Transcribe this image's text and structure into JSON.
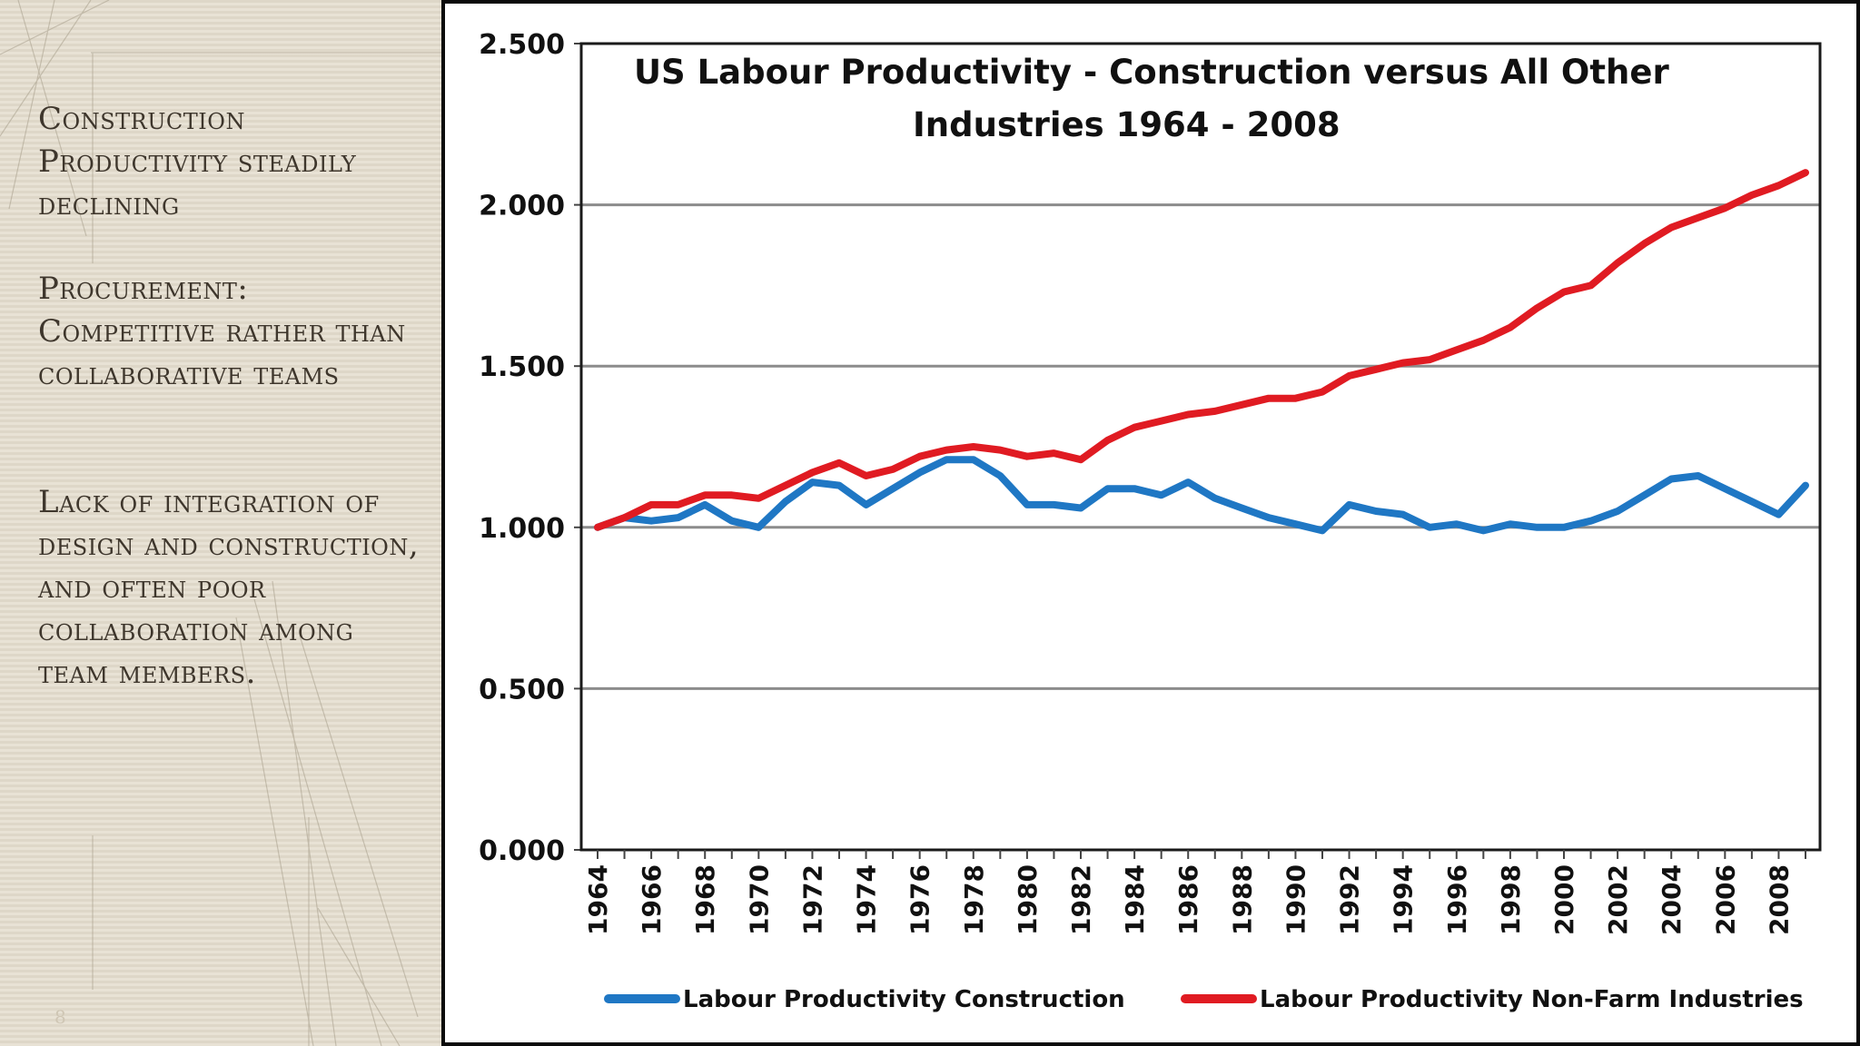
{
  "slide": {
    "bullets": [
      "Construction Productivity steadily declining",
      "Procurement: Competitive rather than collaborative teams",
      "Lack of integration of design and construction, and often poor collaboration among team members."
    ],
    "slide_number": "8"
  },
  "colors": {
    "construction": "#1f77c4",
    "non_farm": "#e01b22",
    "panel": "#e3dccd",
    "text": "#3e362c"
  },
  "chart_data": {
    "type": "line",
    "title_lines": [
      "US Labour Productivity - Construction versus All Other",
      "Industries  1964 - 2008"
    ],
    "x": [
      1964,
      1965,
      1966,
      1967,
      1968,
      1969,
      1970,
      1971,
      1972,
      1973,
      1974,
      1975,
      1976,
      1977,
      1978,
      1979,
      1980,
      1981,
      1982,
      1983,
      1984,
      1985,
      1986,
      1987,
      1988,
      1989,
      1990,
      1991,
      1992,
      1993,
      1994,
      1995,
      1996,
      1997,
      1998,
      1999,
      2000,
      2001,
      2002,
      2003,
      2004,
      2005,
      2006,
      2007,
      2008,
      2009
    ],
    "x_tick_labels": [
      "1964",
      "1966",
      "1968",
      "1970",
      "1972",
      "1974",
      "1976",
      "1978",
      "1980",
      "1982",
      "1984",
      "1986",
      "1988",
      "1990",
      "1992",
      "1994",
      "1996",
      "1998",
      "2000",
      "2002",
      "2004",
      "2006",
      "2008"
    ],
    "y_tick_labels": [
      "0.000",
      "0.500",
      "1.000",
      "1.500",
      "2.000",
      "2.500"
    ],
    "ylim": [
      0,
      2.5
    ],
    "grid": true,
    "legend_position": "bottom",
    "series": [
      {
        "name": "Labour Productivity Construction",
        "color": "#1f77c4",
        "values": [
          1.0,
          1.03,
          1.02,
          1.03,
          1.07,
          1.02,
          1.0,
          1.08,
          1.14,
          1.13,
          1.07,
          1.12,
          1.17,
          1.21,
          1.21,
          1.16,
          1.07,
          1.07,
          1.06,
          1.12,
          1.12,
          1.1,
          1.14,
          1.09,
          1.06,
          1.03,
          1.01,
          0.99,
          1.07,
          1.05,
          1.04,
          1.0,
          1.01,
          0.99,
          1.01,
          1.0,
          1.0,
          1.02,
          1.05,
          1.1,
          1.15,
          1.16,
          1.12,
          1.08,
          1.04,
          1.13
        ]
      },
      {
        "name": "Labour Productivity Non-Farm Industries",
        "color": "#e01b22",
        "values": [
          1.0,
          1.03,
          1.07,
          1.07,
          1.1,
          1.1,
          1.09,
          1.13,
          1.17,
          1.2,
          1.16,
          1.18,
          1.22,
          1.24,
          1.25,
          1.24,
          1.22,
          1.23,
          1.21,
          1.27,
          1.31,
          1.33,
          1.35,
          1.36,
          1.38,
          1.4,
          1.4,
          1.42,
          1.47,
          1.49,
          1.51,
          1.52,
          1.55,
          1.58,
          1.62,
          1.68,
          1.73,
          1.75,
          1.82,
          1.88,
          1.93,
          1.96,
          1.99,
          2.03,
          2.06,
          2.1
        ]
      }
    ]
  }
}
